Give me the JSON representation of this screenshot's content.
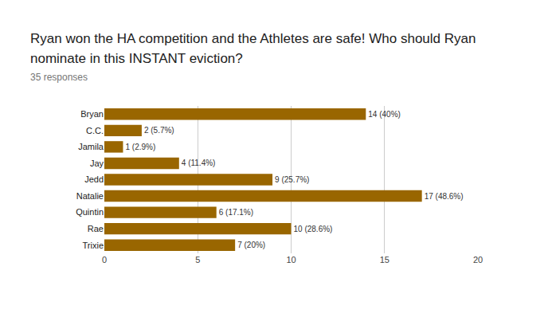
{
  "chart_data": {
    "type": "bar",
    "title": "Ryan won the HA competition and the Athletes are safe! Who should Ryan nominate in this INSTANT eviction?",
    "subtitle": "35 responses",
    "orientation": "horizontal",
    "categories": [
      "Bryan",
      "C.C.",
      "Jamila",
      "Jay",
      "Jedd",
      "Natalie",
      "Quintin",
      "Rae",
      "Trixie"
    ],
    "values": [
      14,
      2,
      1,
      4,
      9,
      17,
      6,
      10,
      7
    ],
    "value_labels": [
      "14 (40%)",
      "2 (5.7%)",
      "1 (2.9%)",
      "4 (11.4%)",
      "9 (25.7%)",
      "17 (48.6%)",
      "6 (17.1%)",
      "10 (28.6%)",
      "7 (20%)"
    ],
    "color": "#996600",
    "xlim": [
      0,
      20
    ],
    "xticks": [
      0,
      5,
      10,
      15,
      20
    ],
    "grid": true,
    "data_labels": true
  }
}
